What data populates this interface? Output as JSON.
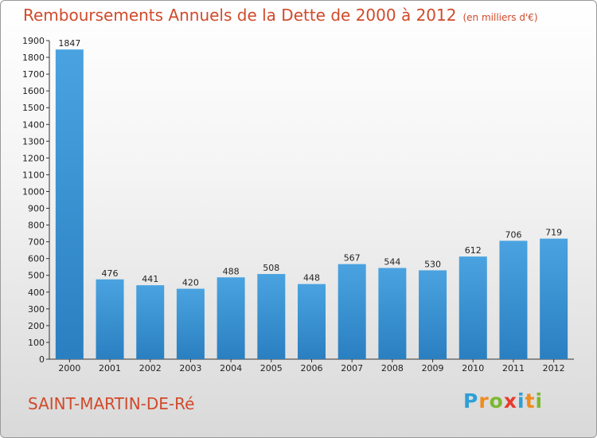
{
  "title": "Remboursements Annuels de la Dette de 2000 à 2012",
  "subtitle": "(en milliers d'€)",
  "commune": "SAINT-MARTIN-DE-Ré",
  "logo": {
    "letters": [
      "P",
      "r",
      "o",
      "x",
      "i",
      "t",
      "i"
    ],
    "colors": [
      "#2f9fd6",
      "#f08c1e",
      "#7cb82f",
      "#e83a2c",
      "#2f9fd6",
      "#f08c1e",
      "#7cb82f"
    ]
  },
  "colors": {
    "bar": "#4aa3e0",
    "bar_dark": "#2a7fc0",
    "title": "#d14a2a"
  },
  "chart_data": {
    "type": "bar",
    "categories": [
      "2000",
      "2001",
      "2002",
      "2003",
      "2004",
      "2005",
      "2006",
      "2007",
      "2008",
      "2009",
      "2010",
      "2011",
      "2012"
    ],
    "values": [
      1847,
      476,
      441,
      420,
      488,
      508,
      448,
      567,
      544,
      530,
      612,
      706,
      719
    ],
    "ylim": [
      0,
      1900
    ],
    "yticks": [
      0,
      100,
      200,
      300,
      400,
      500,
      600,
      700,
      800,
      900,
      1000,
      1100,
      1200,
      1300,
      1400,
      1500,
      1600,
      1700,
      1800,
      1900
    ],
    "grid": false,
    "title": "Remboursements Annuels de la Dette de 2000 à 2012"
  }
}
